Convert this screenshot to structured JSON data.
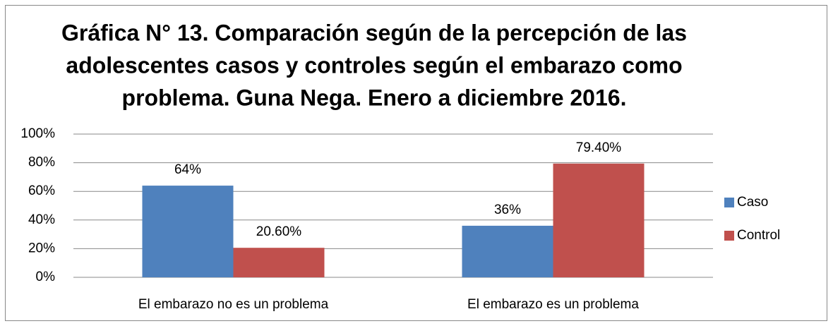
{
  "chart_data": {
    "type": "bar",
    "title": [
      "Gráfica N° 13. Comparación según de la percepción de las",
      "adolescentes casos y controles según el embarazo como",
      "problema. Guna Nega.  Enero a diciembre 2016."
    ],
    "categories": [
      "El embarazo no es un problema",
      "El embarazo es un problema"
    ],
    "series": [
      {
        "name": "Caso",
        "color": "#4f81bd",
        "values": [
          64,
          36
        ],
        "value_labels": [
          "64%",
          "36%"
        ],
        "value_label_colors": [
          "#ff0000",
          "#000000"
        ]
      },
      {
        "name": "Control",
        "color": "#c0504d",
        "values": [
          20.6,
          79.4
        ],
        "value_labels": [
          "20.60%",
          "79.40%"
        ],
        "value_label_colors": [
          "#000000",
          "#ff0000"
        ]
      }
    ],
    "ylim": [
      0,
      100
    ],
    "yticks": [
      {
        "value": 0,
        "label": "0%"
      },
      {
        "value": 20,
        "label": "20%"
      },
      {
        "value": 40,
        "label": "40%"
      },
      {
        "value": 60,
        "label": "60%"
      },
      {
        "value": 80,
        "label": "80%"
      },
      {
        "value": 100,
        "label": "100%"
      }
    ],
    "grid": true,
    "legend": "right"
  }
}
